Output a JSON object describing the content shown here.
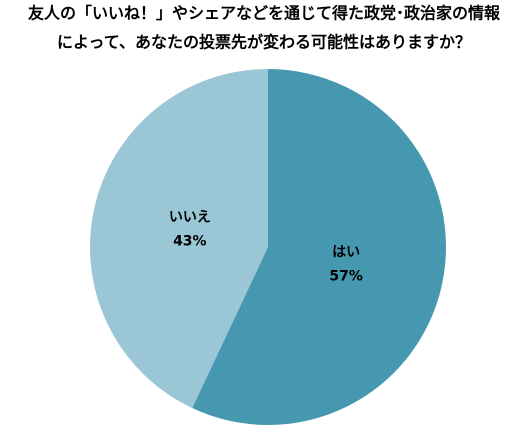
{
  "chart_data": {
    "type": "pie",
    "title": [
      "友人の「いいね！」やシェアなどを通じて得た政党･政治家の情報",
      "によって、あなたの投票先が変わる可能性はありますか？"
    ],
    "categories": [
      "はい",
      "いいえ"
    ],
    "values": [
      57,
      43
    ],
    "value_labels": [
      "57%",
      "43%"
    ],
    "colors": [
      "#4698b0",
      "#9bc6d6"
    ]
  }
}
